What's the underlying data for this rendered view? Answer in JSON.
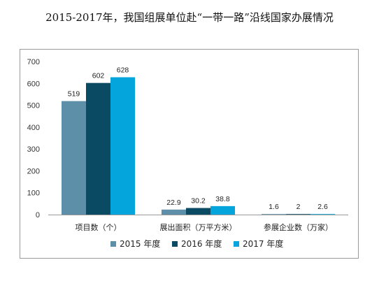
{
  "chart_data": {
    "type": "bar",
    "title": "2015-2017年，我国组展单位赴“一带一路”沿线国家办展情况",
    "categories": [
      "项目数（个）",
      "展出面积（万平方米）",
      "参展企业数（万家）"
    ],
    "series": [
      {
        "name": "2015 年度",
        "color": "#5e8fa8",
        "values": [
          519,
          22.9,
          1.6
        ],
        "labels": [
          "519",
          "22.9",
          "1.6"
        ]
      },
      {
        "name": "2016 年度",
        "color": "#0b4a63",
        "values": [
          602,
          30.2,
          2
        ],
        "labels": [
          "602",
          "30.2",
          "2"
        ]
      },
      {
        "name": "2017 年度",
        "color": "#03a5dc",
        "values": [
          628,
          38.8,
          2.6
        ],
        "labels": [
          "628",
          "38.8",
          "2.6"
        ]
      }
    ],
    "ylim": [
      0,
      700
    ],
    "yticks": [
      "0",
      "100",
      "200",
      "300",
      "400",
      "500",
      "600",
      "700"
    ],
    "legend": "bottom",
    "grid": false
  }
}
